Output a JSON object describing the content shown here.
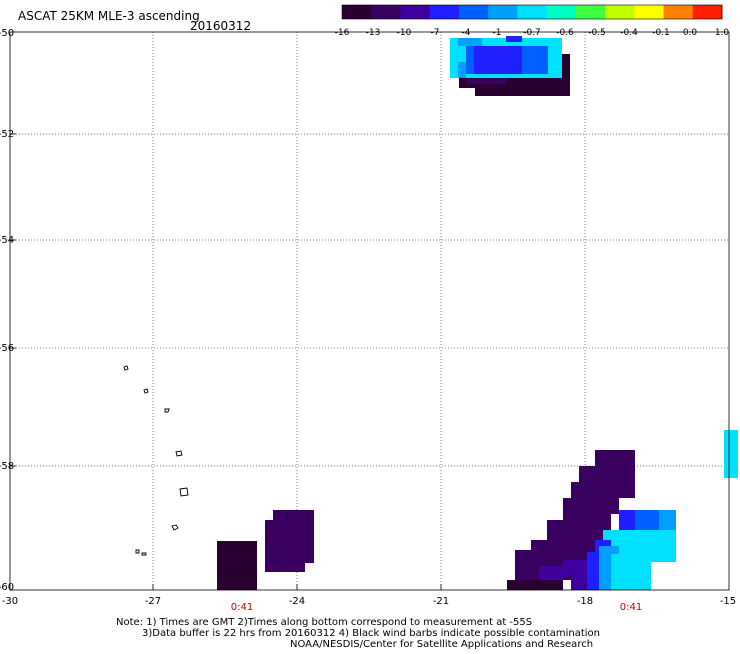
{
  "header": {
    "title": "ASCAT 25KM MLE-3 ascending",
    "date": "20160312"
  },
  "colorbar": {
    "labels": [
      "-16",
      "-13",
      "-10",
      "-7",
      "-4",
      "-1",
      "-0.7",
      "-0.6",
      "-0.5",
      "-0.4",
      "-0.1",
      "0.0",
      "1.0"
    ],
    "colors": [
      "#2a0033",
      "#3a0060",
      "#4000a0",
      "#2020ff",
      "#0060ff",
      "#00a0ff",
      "#00e0ff",
      "#00ffc0",
      "#40ff40",
      "#c0ff00",
      "#ffff00",
      "#ff8000",
      "#ff2000"
    ]
  },
  "axes": {
    "x_ticks": [
      "-30",
      "-27",
      "-24",
      "-21",
      "-18",
      "-15"
    ],
    "y_ticks": [
      "-50",
      "-52",
      "-54",
      "-56",
      "-58",
      "-60"
    ]
  },
  "time_labels": [
    "0:41",
    "0:41"
  ],
  "notes": {
    "line1": "Note: 1) Times are GMT 2)Times along bottom correspond to measurement at -55S",
    "line2": "3)Data buffer is 22 hrs from 20160312 4) Black wind barbs indicate possible contamination",
    "line3": "NOAA/NESDIS/Center for Satellite Applications and Research"
  },
  "palette": {
    "dark_purple": "#2a0033",
    "purple": "#3a0060",
    "violet": "#4000a0",
    "blue": "#2020ff",
    "mid_blue": "#0060ff",
    "light_blue": "#00a0ff",
    "cyan": "#00e0ff"
  }
}
